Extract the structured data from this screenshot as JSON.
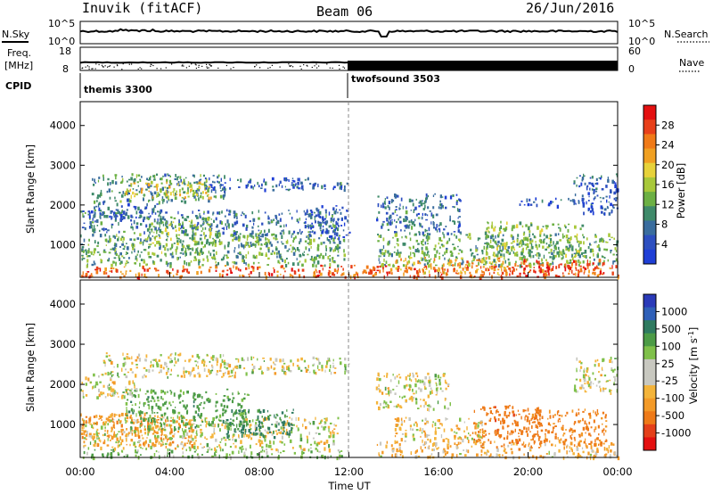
{
  "header": {
    "station": "Inuvik (fitACF)",
    "beam": "Beam 06",
    "date": "26/Jun/2016"
  },
  "strip_labels": {
    "nsky": "N.Sky",
    "nsearch": "N.Search",
    "freq": "Freq.",
    "mhz": "[MHz]",
    "nave": "Nave",
    "cpid": "CPID",
    "nsky_ticks": [
      "10^5",
      "10^0"
    ],
    "nsearch_ticks": [
      "10^5",
      "10^0"
    ],
    "freq_ticks": [
      "18",
      "8"
    ],
    "nave_ticks": [
      "60",
      "0"
    ],
    "cpid_segments": [
      "themis 3300",
      "twofsound 3503"
    ]
  },
  "colors": {
    "power": [
      "#1f3fd6",
      "#2d4fc0",
      "#3a6d9e",
      "#3f8a6a",
      "#6cb044",
      "#a8c83a",
      "#e7d23a",
      "#f0a022",
      "#f07a18",
      "#e8401a",
      "#e41010"
    ],
    "velocity": [
      "#2a3ab8",
      "#2f60b8",
      "#2f7a60",
      "#4c9b46",
      "#7fc04a",
      "#c8c8c0",
      "#c8c8c0",
      "#f4b43a",
      "#f39a28",
      "#ee7a18",
      "#e4401a",
      "#e41010"
    ]
  },
  "chart_data": [
    {
      "type": "heatmap",
      "title": "Power",
      "xlabel": "Time UT",
      "ylabel": "Slant Range [km]",
      "x_ticks": [
        "00:00",
        "04:00",
        "08:00",
        "12:00",
        "16:00",
        "20:00",
        "00:00"
      ],
      "y_ticks": [
        "1000",
        "2000",
        "3000",
        "4000"
      ],
      "xlim": [
        0,
        24
      ],
      "ylim": [
        180,
        4600
      ],
      "colorbar": {
        "label": "Power [dB]",
        "ticks": [
          "28",
          "24",
          "20",
          "16",
          "12",
          "8",
          "4"
        ],
        "range": [
          0,
          32
        ]
      },
      "regions": [
        {
          "t0": 0.0,
          "t1": 24.0,
          "r0": 200,
          "r1": 500,
          "value": 26
        },
        {
          "t0": 0.0,
          "t1": 11.8,
          "r0": 500,
          "r1": 1300,
          "value": 12
        },
        {
          "t0": 0.0,
          "t1": 11.5,
          "r0": 1300,
          "r1": 1900,
          "value": 8
        },
        {
          "t0": 0.3,
          "t1": 3.5,
          "r0": 1700,
          "r1": 2100,
          "value": 6
        },
        {
          "t0": 0.5,
          "t1": 6.5,
          "r0": 2100,
          "r1": 2800,
          "value": 10
        },
        {
          "t0": 2.0,
          "t1": 5.8,
          "r0": 2200,
          "r1": 2600,
          "value": 18
        },
        {
          "t0": 5.5,
          "t1": 10.5,
          "r0": 2400,
          "r1": 2700,
          "value": 6
        },
        {
          "t0": 3.0,
          "t1": 5.8,
          "r0": 800,
          "r1": 1700,
          "value": 14
        },
        {
          "t0": 7.0,
          "t1": 9.0,
          "r0": 700,
          "r1": 1300,
          "value": 11
        },
        {
          "t0": 9.0,
          "t1": 12.0,
          "r0": 2400,
          "r1": 2600,
          "value": 7
        },
        {
          "t0": 10.0,
          "t1": 12.0,
          "r0": 1200,
          "r1": 2000,
          "value": 4
        },
        {
          "t0": 13.2,
          "t1": 17.0,
          "r0": 1300,
          "r1": 2300,
          "value": 7
        },
        {
          "t0": 13.2,
          "t1": 24.0,
          "r0": 500,
          "r1": 1300,
          "value": 12
        },
        {
          "t0": 14.0,
          "t1": 19.0,
          "r0": 300,
          "r1": 700,
          "value": 22
        },
        {
          "t0": 18.0,
          "t1": 22.5,
          "r0": 700,
          "r1": 1600,
          "value": 14
        },
        {
          "t0": 19.0,
          "t1": 23.5,
          "r0": 300,
          "r1": 650,
          "value": 28
        },
        {
          "t0": 22.0,
          "t1": 24.0,
          "r0": 1800,
          "r1": 2800,
          "value": 6
        },
        {
          "t0": 19.5,
          "t1": 22.5,
          "r0": 2000,
          "r1": 2200,
          "value": 5
        }
      ]
    },
    {
      "type": "heatmap",
      "title": "Velocity",
      "xlabel": "Time UT",
      "ylabel": "Slant Range [km]",
      "x_ticks": [
        "00:00",
        "04:00",
        "08:00",
        "12:00",
        "16:00",
        "20:00",
        "00:00"
      ],
      "y_ticks": [
        "1000",
        "2000",
        "3000",
        "4000"
      ],
      "xlim": [
        0,
        24
      ],
      "ylim": [
        180,
        4600
      ],
      "colorbar": {
        "label": "Velocity [m s^-1]",
        "ticks": [
          "1000",
          "500",
          "100",
          "25",
          "-25",
          "-100",
          "-500",
          "-1000"
        ]
      },
      "regions": [
        {
          "t0": 0.0,
          "t1": 12.0,
          "r0": 200,
          "r1": 400,
          "value": 100
        },
        {
          "t0": 0.0,
          "t1": 11.5,
          "r0": 400,
          "r1": 1200,
          "value": 0
        },
        {
          "t0": 0.0,
          "t1": 5.0,
          "r0": 500,
          "r1": 1300,
          "value": -200
        },
        {
          "t0": 2.0,
          "t1": 7.5,
          "r0": 900,
          "r1": 1900,
          "value": 150
        },
        {
          "t0": 6.5,
          "t1": 9.5,
          "r0": 700,
          "r1": 1400,
          "value": 300
        },
        {
          "t0": 0.0,
          "t1": 2.5,
          "r0": 1700,
          "r1": 2300,
          "value": 0
        },
        {
          "t0": 1.0,
          "t1": 7.0,
          "r0": 2200,
          "r1": 2800,
          "value": 0
        },
        {
          "t0": 7.0,
          "t1": 12.0,
          "r0": 2300,
          "r1": 2700,
          "value": 0
        },
        {
          "t0": 13.2,
          "t1": 16.5,
          "r0": 1400,
          "r1": 2300,
          "value": 0
        },
        {
          "t0": 13.2,
          "t1": 24.0,
          "r0": 200,
          "r1": 600,
          "value": -80
        },
        {
          "t0": 17.5,
          "t1": 20.5,
          "r0": 400,
          "r1": 1500,
          "value": -400
        },
        {
          "t0": 20.0,
          "t1": 23.5,
          "r0": 500,
          "r1": 1400,
          "value": -300
        },
        {
          "t0": 14.0,
          "t1": 18.0,
          "r0": 600,
          "r1": 1200,
          "value": -50
        },
        {
          "t0": 22.0,
          "t1": 24.0,
          "r0": 1800,
          "r1": 2700,
          "value": 0
        }
      ]
    }
  ]
}
